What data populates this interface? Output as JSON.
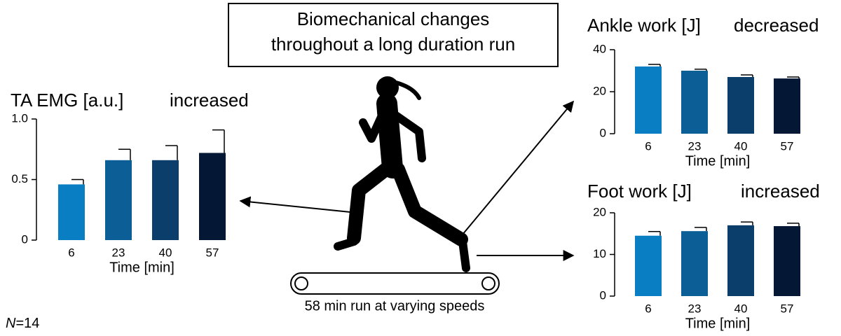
{
  "title": [
    "Biomechanical changes",
    "throughout a long duration run"
  ],
  "caption": "58 min run at varying speeds",
  "note_symbol": "N",
  "note_rest": "=14",
  "chart_data": [
    {
      "type": "bar",
      "title": "TA EMG [a.u.]",
      "annotation": "increased",
      "xlabel": "Time [min]",
      "categories": [
        "6",
        "23",
        "40",
        "57"
      ],
      "values": [
        0.46,
        0.66,
        0.66,
        0.72
      ],
      "errors": [
        0.04,
        0.09,
        0.12,
        0.19
      ],
      "colors": [
        "#0a7ec2",
        "#0b5e96",
        "#0c3e6b",
        "#041836"
      ],
      "ylim": [
        0,
        1
      ],
      "yticks": [
        0,
        0.5,
        {
          "value": 1,
          "label": "1.0"
        }
      ]
    },
    {
      "type": "bar",
      "title": "Ankle work [J]",
      "annotation": "decreased",
      "xlabel": "Time [min]",
      "categories": [
        "6",
        "23",
        "40",
        "57"
      ],
      "values": [
        32,
        30,
        27,
        26.3
      ],
      "errors": [
        1,
        0.7,
        1,
        0.7
      ],
      "colors": [
        "#0a7ec2",
        "#0b5e96",
        "#0c3e6b",
        "#041836"
      ],
      "ylim": [
        0,
        40
      ],
      "yticks": [
        0,
        20,
        40
      ]
    },
    {
      "type": "bar",
      "title": "Foot work [J]",
      "annotation": "increased",
      "xlabel": "Time [min]",
      "categories": [
        "6",
        "23",
        "40",
        "57"
      ],
      "values": [
        14.5,
        15.6,
        17,
        16.8
      ],
      "errors": [
        1,
        0.9,
        0.8,
        0.7
      ],
      "colors": [
        "#0a7ec2",
        "#0b5e96",
        "#0c3e6b",
        "#041836"
      ],
      "ylim": [
        0,
        20
      ],
      "yticks": [
        0,
        10,
        20
      ]
    }
  ]
}
